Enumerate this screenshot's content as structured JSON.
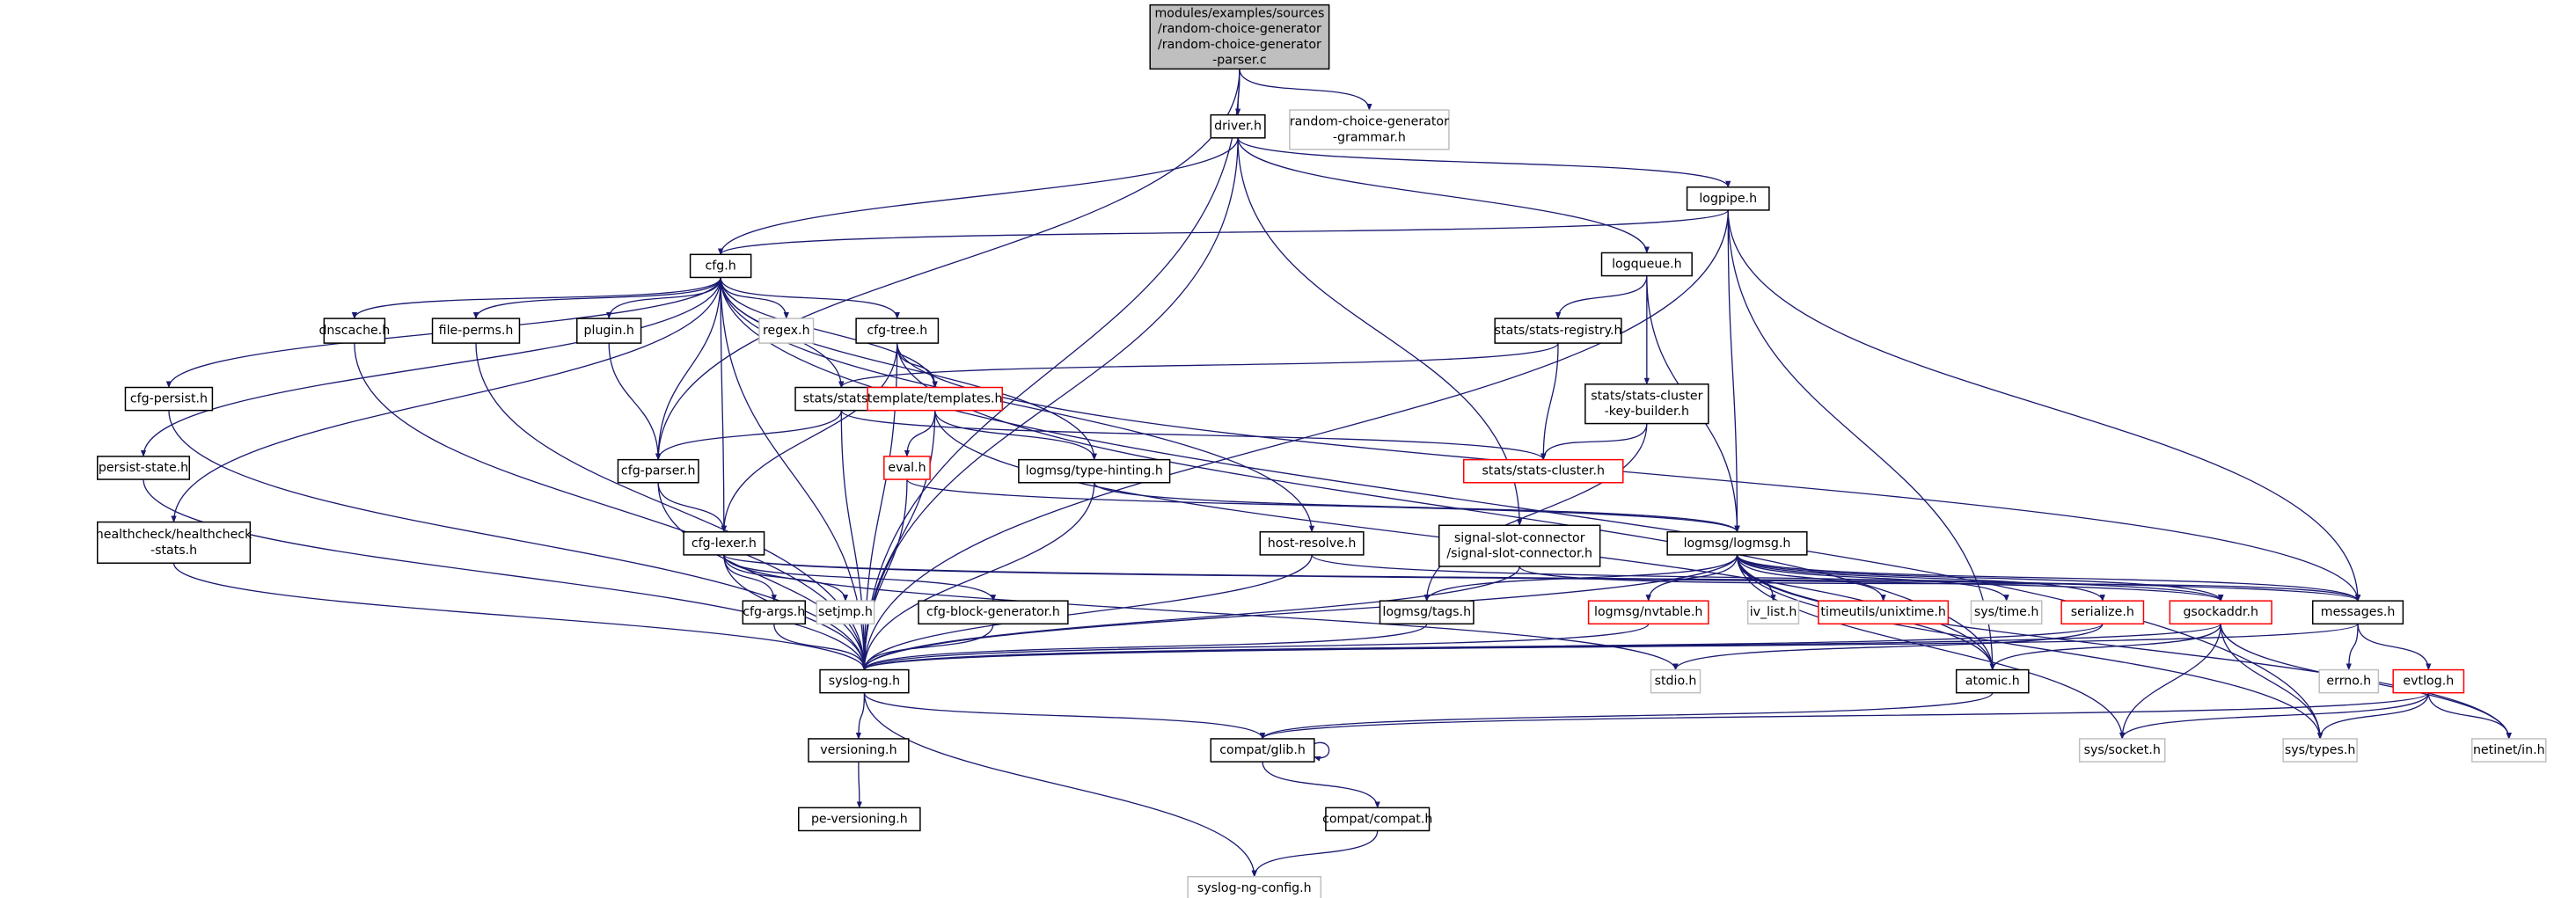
{
  "colors": {
    "edge": "#191970",
    "node_border": "#000000",
    "missing_border": "#bfbfbf",
    "truncated_border": "#ff0000",
    "root_fill": "#bfbfbf"
  },
  "nodes": [
    {
      "id": "main",
      "lines": [
        "modules/examples/sources",
        "/random-choice-generator",
        "/random-choice-generator",
        "-parser.c"
      ],
      "style": "root"
    },
    {
      "id": "driver",
      "lines": [
        "driver.h"
      ],
      "style": "normal"
    },
    {
      "id": "grammar",
      "lines": [
        "random-choice-generator",
        "-grammar.h"
      ],
      "style": "missing"
    },
    {
      "id": "logpipe",
      "lines": [
        "logpipe.h"
      ],
      "style": "normal"
    },
    {
      "id": "cfg",
      "lines": [
        "cfg.h"
      ],
      "style": "normal"
    },
    {
      "id": "logqueue",
      "lines": [
        "logqueue.h"
      ],
      "style": "normal"
    },
    {
      "id": "dnscache",
      "lines": [
        "dnscache.h"
      ],
      "style": "normal"
    },
    {
      "id": "fileperms",
      "lines": [
        "file-perms.h"
      ],
      "style": "normal"
    },
    {
      "id": "plugin",
      "lines": [
        "plugin.h"
      ],
      "style": "normal"
    },
    {
      "id": "regex",
      "lines": [
        "regex.h"
      ],
      "style": "missing"
    },
    {
      "id": "cfgtree",
      "lines": [
        "cfg-tree.h"
      ],
      "style": "normal"
    },
    {
      "id": "statsreg",
      "lines": [
        "stats/stats-registry.h"
      ],
      "style": "normal"
    },
    {
      "id": "cfgpersist",
      "lines": [
        "cfg-persist.h"
      ],
      "style": "normal"
    },
    {
      "id": "stats",
      "lines": [
        "stats/stats.h"
      ],
      "style": "normal"
    },
    {
      "id": "templates",
      "lines": [
        "template/templates.h"
      ],
      "style": "truncated"
    },
    {
      "id": "keybuilder",
      "lines": [
        "stats/stats-cluster",
        "-key-builder.h"
      ],
      "style": "normal"
    },
    {
      "id": "persist",
      "lines": [
        "persist-state.h"
      ],
      "style": "normal"
    },
    {
      "id": "cfgparser",
      "lines": [
        "cfg-parser.h"
      ],
      "style": "normal"
    },
    {
      "id": "eval",
      "lines": [
        "eval.h"
      ],
      "style": "truncated"
    },
    {
      "id": "typehint",
      "lines": [
        "logmsg/type-hinting.h"
      ],
      "style": "normal"
    },
    {
      "id": "statscluster",
      "lines": [
        "stats/stats-cluster.h"
      ],
      "style": "truncated"
    },
    {
      "id": "health",
      "lines": [
        "healthcheck/healthcheck",
        "-stats.h"
      ],
      "style": "normal"
    },
    {
      "id": "cfglexer",
      "lines": [
        "cfg-lexer.h"
      ],
      "style": "normal"
    },
    {
      "id": "hostres",
      "lines": [
        "host-resolve.h"
      ],
      "style": "normal"
    },
    {
      "id": "signal",
      "lines": [
        "signal-slot-connector",
        "/signal-slot-connector.h"
      ],
      "style": "normal"
    },
    {
      "id": "logmsg",
      "lines": [
        "logmsg/logmsg.h"
      ],
      "style": "normal"
    },
    {
      "id": "cfgargs",
      "lines": [
        "cfg-args.h"
      ],
      "style": "normal"
    },
    {
      "id": "setjmp",
      "lines": [
        "setjmp.h"
      ],
      "style": "missing"
    },
    {
      "id": "blockgen",
      "lines": [
        "cfg-block-generator.h"
      ],
      "style": "normal"
    },
    {
      "id": "tags",
      "lines": [
        "logmsg/tags.h"
      ],
      "style": "normal"
    },
    {
      "id": "nvtable",
      "lines": [
        "logmsg/nvtable.h"
      ],
      "style": "truncated"
    },
    {
      "id": "ivlist",
      "lines": [
        "iv_list.h"
      ],
      "style": "missing"
    },
    {
      "id": "unixtime",
      "lines": [
        "timeutils/unixtime.h"
      ],
      "style": "truncated"
    },
    {
      "id": "systime",
      "lines": [
        "sys/time.h"
      ],
      "style": "missing"
    },
    {
      "id": "serialize",
      "lines": [
        "serialize.h"
      ],
      "style": "truncated"
    },
    {
      "id": "gsockaddr",
      "lines": [
        "gsockaddr.h"
      ],
      "style": "truncated"
    },
    {
      "id": "messages",
      "lines": [
        "messages.h"
      ],
      "style": "normal"
    },
    {
      "id": "syslogng",
      "lines": [
        "syslog-ng.h"
      ],
      "style": "normal"
    },
    {
      "id": "stdio",
      "lines": [
        "stdio.h"
      ],
      "style": "missing"
    },
    {
      "id": "atomic",
      "lines": [
        "atomic.h"
      ],
      "style": "normal"
    },
    {
      "id": "errno",
      "lines": [
        "errno.h"
      ],
      "style": "missing"
    },
    {
      "id": "evtlog",
      "lines": [
        "evtlog.h"
      ],
      "style": "truncated"
    },
    {
      "id": "versioning",
      "lines": [
        "versioning.h"
      ],
      "style": "normal"
    },
    {
      "id": "glib",
      "lines": [
        "compat/glib.h"
      ],
      "style": "normal"
    },
    {
      "id": "syssocket",
      "lines": [
        "sys/socket.h"
      ],
      "style": "missing"
    },
    {
      "id": "systypes",
      "lines": [
        "sys/types.h"
      ],
      "style": "missing"
    },
    {
      "id": "netinet",
      "lines": [
        "netinet/in.h"
      ],
      "style": "missing"
    },
    {
      "id": "peversioning",
      "lines": [
        "pe-versioning.h"
      ],
      "style": "normal"
    },
    {
      "id": "compat",
      "lines": [
        "compat/compat.h"
      ],
      "style": "normal"
    },
    {
      "id": "config",
      "lines": [
        "syslog-ng-config.h"
      ],
      "style": "missing"
    }
  ],
  "edges": [
    [
      "main",
      "driver"
    ],
    [
      "main",
      "grammar"
    ],
    [
      "main",
      "syslogng"
    ],
    [
      "main",
      "cfgparser"
    ],
    [
      "driver",
      "cfg"
    ],
    [
      "driver",
      "syslogng"
    ],
    [
      "driver",
      "logpipe"
    ],
    [
      "driver",
      "logqueue"
    ],
    [
      "driver",
      "signal"
    ],
    [
      "logpipe",
      "cfg"
    ],
    [
      "logpipe",
      "logmsg"
    ],
    [
      "logpipe",
      "syslogng"
    ],
    [
      "logpipe",
      "messages"
    ],
    [
      "logpipe",
      "atomic"
    ],
    [
      "cfg",
      "dnscache"
    ],
    [
      "cfg",
      "fileperms"
    ],
    [
      "cfg",
      "plugin"
    ],
    [
      "cfg",
      "regex"
    ],
    [
      "cfg",
      "cfgtree"
    ],
    [
      "cfg",
      "cfgpersist"
    ],
    [
      "cfg",
      "persist"
    ],
    [
      "cfg",
      "health"
    ],
    [
      "cfg",
      "stats"
    ],
    [
      "cfg",
      "templates"
    ],
    [
      "cfg",
      "cfgparser"
    ],
    [
      "cfg",
      "cfglexer"
    ],
    [
      "cfg",
      "typehint"
    ],
    [
      "cfg",
      "hostres"
    ],
    [
      "cfg",
      "syslogng"
    ],
    [
      "cfg",
      "systypes"
    ],
    [
      "logqueue",
      "statsreg"
    ],
    [
      "logqueue",
      "keybuilder"
    ],
    [
      "logqueue",
      "logmsg"
    ],
    [
      "statsreg",
      "stats"
    ],
    [
      "statsreg",
      "statscluster"
    ],
    [
      "keybuilder",
      "statscluster"
    ],
    [
      "keybuilder",
      "tags"
    ],
    [
      "dnscache",
      "syslogng"
    ],
    [
      "fileperms",
      "syslogng"
    ],
    [
      "plugin",
      "cfgparser"
    ],
    [
      "cfgpersist",
      "syslogng"
    ],
    [
      "persist",
      "syslogng"
    ],
    [
      "health",
      "syslogng"
    ],
    [
      "cfgtree",
      "templates"
    ],
    [
      "cfgtree",
      "cfglexer"
    ],
    [
      "cfgtree",
      "syslogng"
    ],
    [
      "cfgtree",
      "messages"
    ],
    [
      "cfgtree",
      "atomic"
    ],
    [
      "stats",
      "cfgparser"
    ],
    [
      "stats",
      "statscluster"
    ],
    [
      "stats",
      "syslogng"
    ],
    [
      "templates",
      "eval"
    ],
    [
      "templates",
      "typehint"
    ],
    [
      "templates",
      "syslogng"
    ],
    [
      "templates",
      "atomic"
    ],
    [
      "cfgparser",
      "cfglexer"
    ],
    [
      "cfgparser",
      "syslogng"
    ],
    [
      "eval",
      "syslogng"
    ],
    [
      "eval",
      "logmsg"
    ],
    [
      "typehint",
      "syslogng"
    ],
    [
      "typehint",
      "logmsg"
    ],
    [
      "cfglexer",
      "cfgargs"
    ],
    [
      "cfglexer",
      "setjmp"
    ],
    [
      "cfglexer",
      "blockgen"
    ],
    [
      "cfglexer",
      "syslogng"
    ],
    [
      "cfglexer",
      "messages"
    ],
    [
      "cfglexer",
      "gsockaddr"
    ],
    [
      "cfglexer",
      "stdio"
    ],
    [
      "hostres",
      "syslogng"
    ],
    [
      "hostres",
      "gsockaddr"
    ],
    [
      "signal",
      "syslogng"
    ],
    [
      "signal",
      "messages"
    ],
    [
      "logmsg",
      "tags"
    ],
    [
      "logmsg",
      "nvtable"
    ],
    [
      "logmsg",
      "ivlist"
    ],
    [
      "logmsg",
      "unixtime"
    ],
    [
      "logmsg",
      "systime"
    ],
    [
      "logmsg",
      "serialize"
    ],
    [
      "logmsg",
      "gsockaddr"
    ],
    [
      "logmsg",
      "messages"
    ],
    [
      "logmsg",
      "atomic"
    ],
    [
      "logmsg",
      "syslogng"
    ],
    [
      "logmsg",
      "systypes"
    ],
    [
      "logmsg",
      "netinet"
    ],
    [
      "logmsg",
      "syssocket"
    ],
    [
      "cfgargs",
      "syslogng"
    ],
    [
      "blockgen",
      "syslogng"
    ],
    [
      "tags",
      "syslogng"
    ],
    [
      "nvtable",
      "syslogng"
    ],
    [
      "serialize",
      "syslogng"
    ],
    [
      "serialize",
      "stdio"
    ],
    [
      "gsockaddr",
      "syslogng"
    ],
    [
      "gsockaddr",
      "atomic"
    ],
    [
      "gsockaddr",
      "syssocket"
    ],
    [
      "gsockaddr",
      "systypes"
    ],
    [
      "gsockaddr",
      "netinet"
    ],
    [
      "messages",
      "syslogng"
    ],
    [
      "messages",
      "errno"
    ],
    [
      "messages",
      "evtlog"
    ],
    [
      "evtlog",
      "glib"
    ],
    [
      "evtlog",
      "syssocket"
    ],
    [
      "evtlog",
      "systypes"
    ],
    [
      "evtlog",
      "netinet"
    ],
    [
      "atomic",
      "glib"
    ],
    [
      "syslogng",
      "versioning"
    ],
    [
      "syslogng",
      "glib"
    ],
    [
      "syslogng",
      "config"
    ],
    [
      "versioning",
      "peversioning"
    ],
    [
      "glib",
      "glib"
    ],
    [
      "glib",
      "compat"
    ],
    [
      "compat",
      "config"
    ]
  ]
}
